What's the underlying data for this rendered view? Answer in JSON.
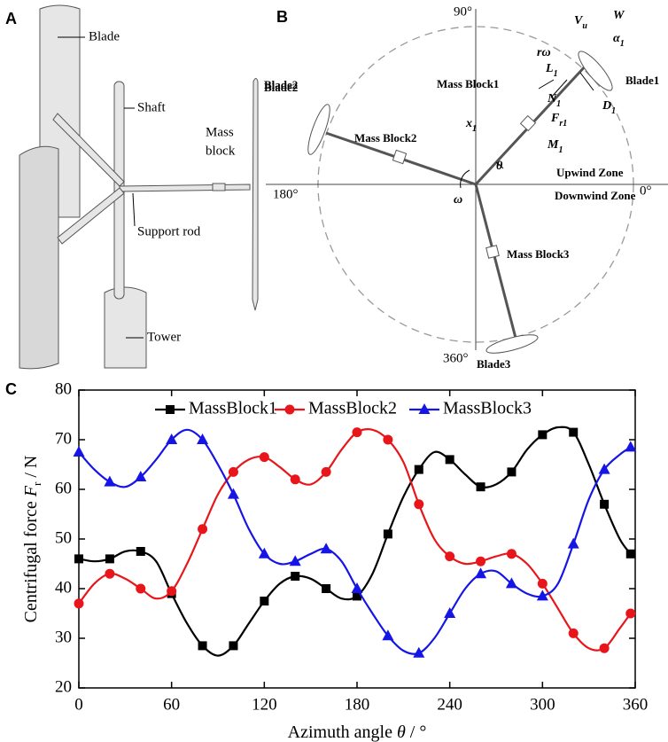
{
  "panel_a": {
    "label": "A",
    "blade": "Blade",
    "shaft": "Shaft",
    "blade2": "Blade2",
    "mass_block": [
      "Mass",
      "block"
    ],
    "support_rod": "Support rod",
    "tower": "Tower"
  },
  "panel_b": {
    "label": "B",
    "angles": [
      "90°",
      "180°",
      "0°",
      "360°"
    ],
    "blades": [
      "Blade1",
      "Blade2",
      "Blade3"
    ],
    "mass_blocks": [
      "Mass Block1",
      "Mass Block2",
      "Mass Block3"
    ],
    "zones": [
      "Upwind Zone",
      "Downwind Zone"
    ],
    "symbols": {
      "vu": [
        "V",
        "u"
      ],
      "w": "W",
      "alpha1": [
        "α",
        "1"
      ],
      "r_omega": "rω",
      "l1": [
        "L",
        "1"
      ],
      "n1": [
        "N",
        "1"
      ],
      "d1": [
        "D",
        "1"
      ],
      "x1": [
        "x",
        "1"
      ],
      "fr1": [
        "F",
        "r1"
      ],
      "m1": [
        "M",
        "1"
      ],
      "theta": "θ",
      "omega": "ω"
    }
  },
  "chart_data": {
    "type": "line",
    "panel_label": "C",
    "xlabel": [
      "Azimuth angle ",
      "θ",
      " / °"
    ],
    "ylabel": [
      "Centrifugal force ",
      "F",
      "r",
      " / N"
    ],
    "x": [
      0,
      10,
      20,
      30,
      40,
      50,
      60,
      70,
      80,
      90,
      100,
      110,
      120,
      130,
      140,
      150,
      160,
      170,
      180,
      190,
      200,
      210,
      220,
      230,
      240,
      250,
      260,
      270,
      280,
      290,
      300,
      310,
      320,
      330,
      340,
      350,
      357
    ],
    "series": [
      {
        "name": "MassBlock1",
        "color": "#000000",
        "marker": "square",
        "values": [
          46,
          45.5,
          46,
          47.5,
          47.5,
          45.5,
          39,
          33,
          28.5,
          26.5,
          28.5,
          33,
          37.5,
          41,
          42.5,
          42,
          40,
          38,
          38.5,
          43,
          51,
          58.5,
          64,
          67.5,
          66,
          63,
          60.5,
          61,
          63.5,
          68,
          71,
          72.5,
          71.5,
          65,
          57,
          50,
          47
        ]
      },
      {
        "name": "MassBlock2",
        "color": "#e8161b",
        "marker": "circle",
        "values": [
          37,
          41,
          43,
          42,
          40,
          38,
          39.5,
          45,
          52,
          59,
          63.5,
          66,
          66.5,
          64.5,
          62,
          61,
          63.5,
          68,
          71.5,
          72,
          70,
          65.5,
          57,
          50,
          46.5,
          45,
          45.5,
          46.5,
          47,
          45,
          41,
          36,
          31,
          28,
          28,
          32,
          35
        ]
      },
      {
        "name": "MassBlock3",
        "color": "#1515e6",
        "marker": "triangle",
        "values": [
          67.5,
          64,
          61.5,
          60.5,
          62.5,
          66,
          70,
          72,
          70,
          65,
          59,
          52,
          47,
          45,
          45.5,
          47,
          48,
          45.5,
          40,
          35,
          30.5,
          27.5,
          27,
          30,
          35,
          40,
          43,
          43.5,
          41,
          39,
          38.5,
          41,
          49,
          58,
          64,
          67,
          68.5
        ]
      }
    ],
    "xlim": [
      0,
      360
    ],
    "xticks": [
      0,
      60,
      120,
      180,
      240,
      300,
      360
    ],
    "ylim": [
      20,
      80
    ],
    "yticks": [
      20,
      30,
      40,
      50,
      60,
      70,
      80
    ],
    "legend": "top"
  }
}
